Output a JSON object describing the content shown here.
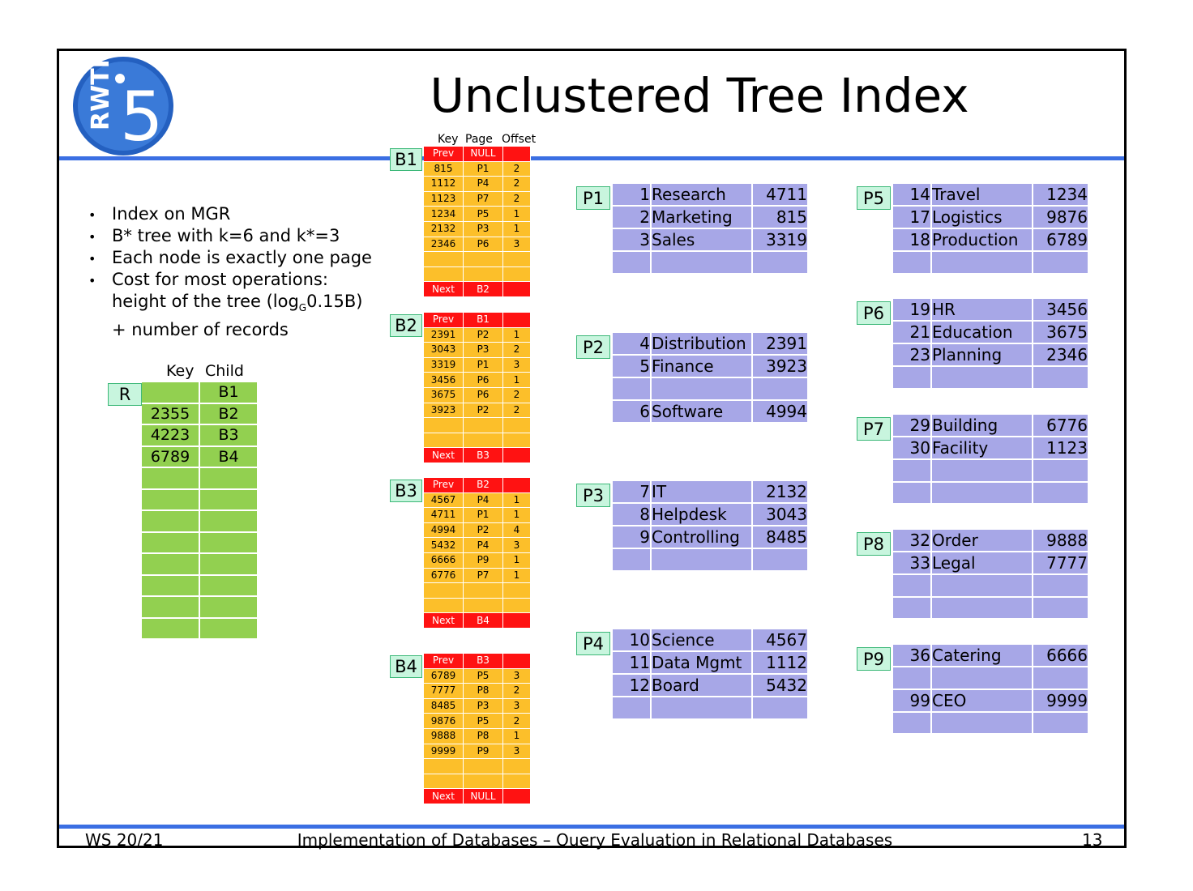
{
  "title": "Unclustered Tree Index",
  "logo": {
    "icon": "rwth-i5-logo",
    "text_vertical": "RWTH",
    "number": "5"
  },
  "bullets": [
    "Index on MGR",
    "B* tree with k=6 and k*=3",
    "Each node is exactly one page",
    "Cost for most operations:",
    "+ number of records"
  ],
  "bullet_height_line": {
    "pre": "height of the tree (log",
    "sub": "G",
    "post": "0.15B)"
  },
  "root": {
    "label": "R",
    "headers": [
      "Key",
      "Child"
    ],
    "rows": [
      [
        "",
        "B1"
      ],
      [
        "2355",
        "B2"
      ],
      [
        "4223",
        "B3"
      ],
      [
        "6789",
        "B4"
      ],
      [
        "",
        ""
      ],
      [
        "",
        ""
      ],
      [
        "",
        ""
      ],
      [
        "",
        ""
      ],
      [
        "",
        ""
      ],
      [
        "",
        ""
      ],
      [
        "",
        ""
      ],
      [
        "",
        ""
      ]
    ]
  },
  "leaf_headers": [
    "Key",
    "Page",
    "Offset"
  ],
  "leaves": [
    {
      "label": "B1",
      "prev": [
        "Prev",
        "NULL",
        ""
      ],
      "rows": [
        [
          "815",
          "P1",
          "2"
        ],
        [
          "1112",
          "P4",
          "2"
        ],
        [
          "1123",
          "P7",
          "2"
        ],
        [
          "1234",
          "P5",
          "1"
        ],
        [
          "2132",
          "P3",
          "1"
        ],
        [
          "2346",
          "P6",
          "3"
        ],
        [
          "",
          "",
          ""
        ],
        [
          "",
          "",
          ""
        ]
      ],
      "next": [
        "Next",
        "B2",
        ""
      ]
    },
    {
      "label": "B2",
      "prev": [
        "Prev",
        "B1",
        ""
      ],
      "rows": [
        [
          "2391",
          "P2",
          "1"
        ],
        [
          "3043",
          "P3",
          "2"
        ],
        [
          "3319",
          "P1",
          "3"
        ],
        [
          "3456",
          "P6",
          "1"
        ],
        [
          "3675",
          "P6",
          "2"
        ],
        [
          "3923",
          "P2",
          "2"
        ],
        [
          "",
          "",
          ""
        ],
        [
          "",
          "",
          ""
        ]
      ],
      "next": [
        "Next",
        "B3",
        ""
      ]
    },
    {
      "label": "B3",
      "prev": [
        "Prev",
        "B2",
        ""
      ],
      "rows": [
        [
          "4567",
          "P4",
          "1"
        ],
        [
          "4711",
          "P1",
          "1"
        ],
        [
          "4994",
          "P2",
          "4"
        ],
        [
          "5432",
          "P4",
          "3"
        ],
        [
          "6666",
          "P9",
          "1"
        ],
        [
          "6776",
          "P7",
          "1"
        ],
        [
          "",
          "",
          ""
        ],
        [
          "",
          "",
          ""
        ]
      ],
      "next": [
        "Next",
        "B4",
        ""
      ]
    },
    {
      "label": "B4",
      "prev": [
        "Prev",
        "B3",
        ""
      ],
      "rows": [
        [
          "6789",
          "P5",
          "3"
        ],
        [
          "7777",
          "P8",
          "2"
        ],
        [
          "8485",
          "P3",
          "3"
        ],
        [
          "9876",
          "P5",
          "2"
        ],
        [
          "9888",
          "P8",
          "1"
        ],
        [
          "9999",
          "P9",
          "3"
        ],
        [
          "",
          "",
          ""
        ],
        [
          "",
          "",
          ""
        ]
      ],
      "next": [
        "Next",
        "NULL",
        ""
      ]
    }
  ],
  "pages": [
    {
      "label": "P1",
      "rows": [
        [
          "1",
          "Research",
          "4711"
        ],
        [
          "2",
          "Marketing",
          "815"
        ],
        [
          "3",
          "Sales",
          "3319"
        ],
        [
          "",
          "",
          ""
        ]
      ]
    },
    {
      "label": "P2",
      "rows": [
        [
          "4",
          "Distribution",
          "2391"
        ],
        [
          "5",
          "Finance",
          "3923"
        ],
        [
          "",
          "",
          ""
        ],
        [
          "6",
          "Software",
          "4994"
        ]
      ]
    },
    {
      "label": "P3",
      "rows": [
        [
          "7",
          "IT",
          "2132"
        ],
        [
          "8",
          "Helpdesk",
          "3043"
        ],
        [
          "9",
          "Controlling",
          "8485"
        ],
        [
          "",
          "",
          ""
        ]
      ]
    },
    {
      "label": "P4",
      "rows": [
        [
          "10",
          "Science",
          "4567"
        ],
        [
          "11",
          "Data Mgmt",
          "1112"
        ],
        [
          "12",
          "Board",
          "5432"
        ],
        [
          "",
          "",
          ""
        ]
      ]
    },
    {
      "label": "P5",
      "rows": [
        [
          "14",
          "Travel",
          "1234"
        ],
        [
          "17",
          "Logistics",
          "9876"
        ],
        [
          "18",
          "Production",
          "6789"
        ],
        [
          "",
          "",
          ""
        ]
      ]
    },
    {
      "label": "P6",
      "rows": [
        [
          "19",
          "HR",
          "3456"
        ],
        [
          "21",
          "Education",
          "3675"
        ],
        [
          "23",
          "Planning",
          "2346"
        ],
        [
          "",
          "",
          ""
        ]
      ]
    },
    {
      "label": "P7",
      "rows": [
        [
          "29",
          "Building",
          "6776"
        ],
        [
          "30",
          "Facility",
          "1123"
        ],
        [
          "",
          "",
          ""
        ],
        [
          "",
          "",
          ""
        ]
      ]
    },
    {
      "label": "P8",
      "rows": [
        [
          "32",
          "Order",
          "9888"
        ],
        [
          "33",
          "Legal",
          "7777"
        ],
        [
          "",
          "",
          ""
        ],
        [
          "",
          "",
          ""
        ]
      ]
    },
    {
      "label": "P9",
      "rows": [
        [
          "36",
          "Catering",
          "6666"
        ],
        [
          "",
          "",
          ""
        ],
        [
          "99",
          "CEO",
          "9999"
        ],
        [
          "",
          "",
          ""
        ]
      ]
    }
  ],
  "footer": {
    "left": "WS 20/21",
    "center": "Implementation of Databases – Query Evaluation in Relational Databases",
    "page": "13"
  }
}
